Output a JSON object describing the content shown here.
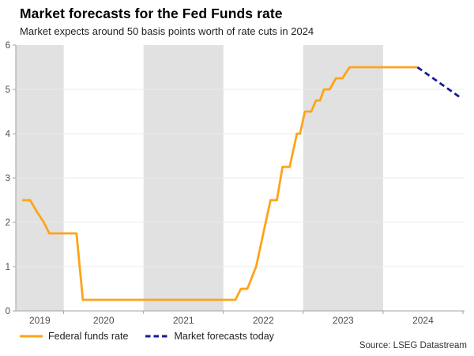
{
  "header": {
    "title": "Market forecasts for the Fed Funds rate",
    "subtitle": "Market expects around 50 basis points worth of rate cuts in 2024"
  },
  "source": {
    "text": "Source: LSEG Datastream"
  },
  "legend": {
    "items": [
      {
        "label": "Federal funds rate",
        "color": "#FFA318",
        "dashed": false
      },
      {
        "label": "Market forecasts today",
        "color": "#191996",
        "dashed": true
      }
    ]
  },
  "chart_data": {
    "type": "line",
    "title": "Market forecasts for the Fed Funds rate",
    "subtitle": "Market expects around 50 basis points worth of rate cuts in 2024",
    "xlabel": "",
    "ylabel": "",
    "xlim": [
      2019.4,
      2025.02
    ],
    "ylim": [
      0,
      6
    ],
    "y_ticks": [
      0,
      1,
      2,
      3,
      4,
      5,
      6
    ],
    "x_year_boundaries": [
      2020,
      2021,
      2022,
      2023,
      2024,
      2025
    ],
    "x_tick_labels": [
      "2019",
      "2020",
      "2021",
      "2022",
      "2023",
      "2024"
    ],
    "grid": "horizontal",
    "legend_position": "bottom-left",
    "shaded_bands": [
      [
        2019.4,
        2020
      ],
      [
        2021,
        2022
      ],
      [
        2023,
        2024
      ]
    ],
    "band_color": "#e1e1e1",
    "gridline_color": "#ebebeb",
    "axis_color": "#a3a3a3",
    "tick_label_color": "#4d4d4d",
    "series": [
      {
        "name": "Federal funds rate",
        "color": "#FFA318",
        "style": "solid",
        "points": [
          [
            2019.48,
            2.5
          ],
          [
            2019.58,
            2.5
          ],
          [
            2019.66,
            2.25
          ],
          [
            2019.75,
            2.0
          ],
          [
            2019.82,
            1.75
          ],
          [
            2020.16,
            1.75
          ],
          [
            2020.24,
            0.25
          ],
          [
            2022.15,
            0.25
          ],
          [
            2022.22,
            0.5
          ],
          [
            2022.3,
            0.5
          ],
          [
            2022.41,
            1.0
          ],
          [
            2022.5,
            1.75
          ],
          [
            2022.59,
            2.5
          ],
          [
            2022.67,
            2.5
          ],
          [
            2022.74,
            3.25
          ],
          [
            2022.83,
            3.25
          ],
          [
            2022.92,
            4.0
          ],
          [
            2022.96,
            4.0
          ],
          [
            2023.02,
            4.5
          ],
          [
            2023.1,
            4.5
          ],
          [
            2023.16,
            4.75
          ],
          [
            2023.21,
            4.75
          ],
          [
            2023.26,
            5.0
          ],
          [
            2023.33,
            5.0
          ],
          [
            2023.41,
            5.25
          ],
          [
            2023.49,
            5.25
          ],
          [
            2023.58,
            5.5
          ],
          [
            2024.43,
            5.5
          ]
        ]
      },
      {
        "name": "Market forecasts today",
        "color": "#191996",
        "style": "dashed",
        "points": [
          [
            2024.43,
            5.5
          ],
          [
            2024.98,
            4.8
          ]
        ]
      }
    ]
  }
}
